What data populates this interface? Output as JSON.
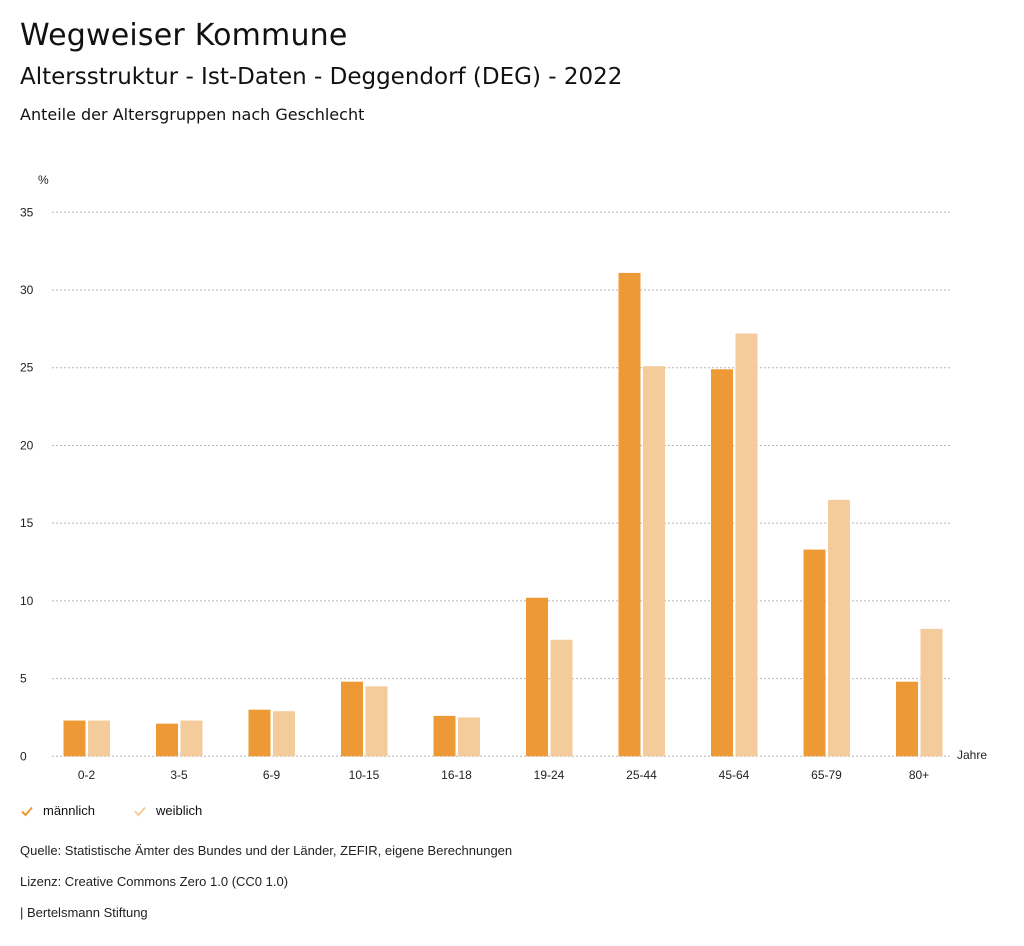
{
  "header": {
    "title": "Wegweiser Kommune",
    "subtitle": "Altersstruktur - Ist-Daten - Deggendorf (DEG) - 2022",
    "chart_title": "Anteile der Altersgruppen nach Geschlecht"
  },
  "chart_data": {
    "type": "bar",
    "title": "Anteile der Altersgruppen nach Geschlecht",
    "xlabel": "Jahre",
    "ylabel": "%",
    "ylim": [
      0,
      35
    ],
    "yticks": [
      0,
      5,
      10,
      15,
      20,
      25,
      30,
      35
    ],
    "grid": true,
    "legend_position": "bottom-left",
    "categories": [
      "0-2",
      "3-5",
      "6-9",
      "10-15",
      "16-18",
      "19-24",
      "25-44",
      "45-64",
      "65-79",
      "80+"
    ],
    "series": [
      {
        "name": "männlich",
        "color": "#ED9A36",
        "values": [
          2.3,
          2.1,
          3.0,
          4.8,
          2.6,
          10.2,
          31.1,
          24.9,
          13.3,
          4.8
        ]
      },
      {
        "name": "weiblich",
        "color": "#F4CB9A",
        "values": [
          2.3,
          2.3,
          2.9,
          4.5,
          2.5,
          7.5,
          25.1,
          27.2,
          16.5,
          8.2
        ]
      }
    ]
  },
  "footer": {
    "source": "Quelle: Statistische Ämter des Bundes und der Länder, ZEFIR, eigene Berechnungen",
    "license": "Lizenz: Creative Commons Zero 1.0 (CC0 1.0)",
    "brand": "| Bertelsmann Stiftung"
  }
}
